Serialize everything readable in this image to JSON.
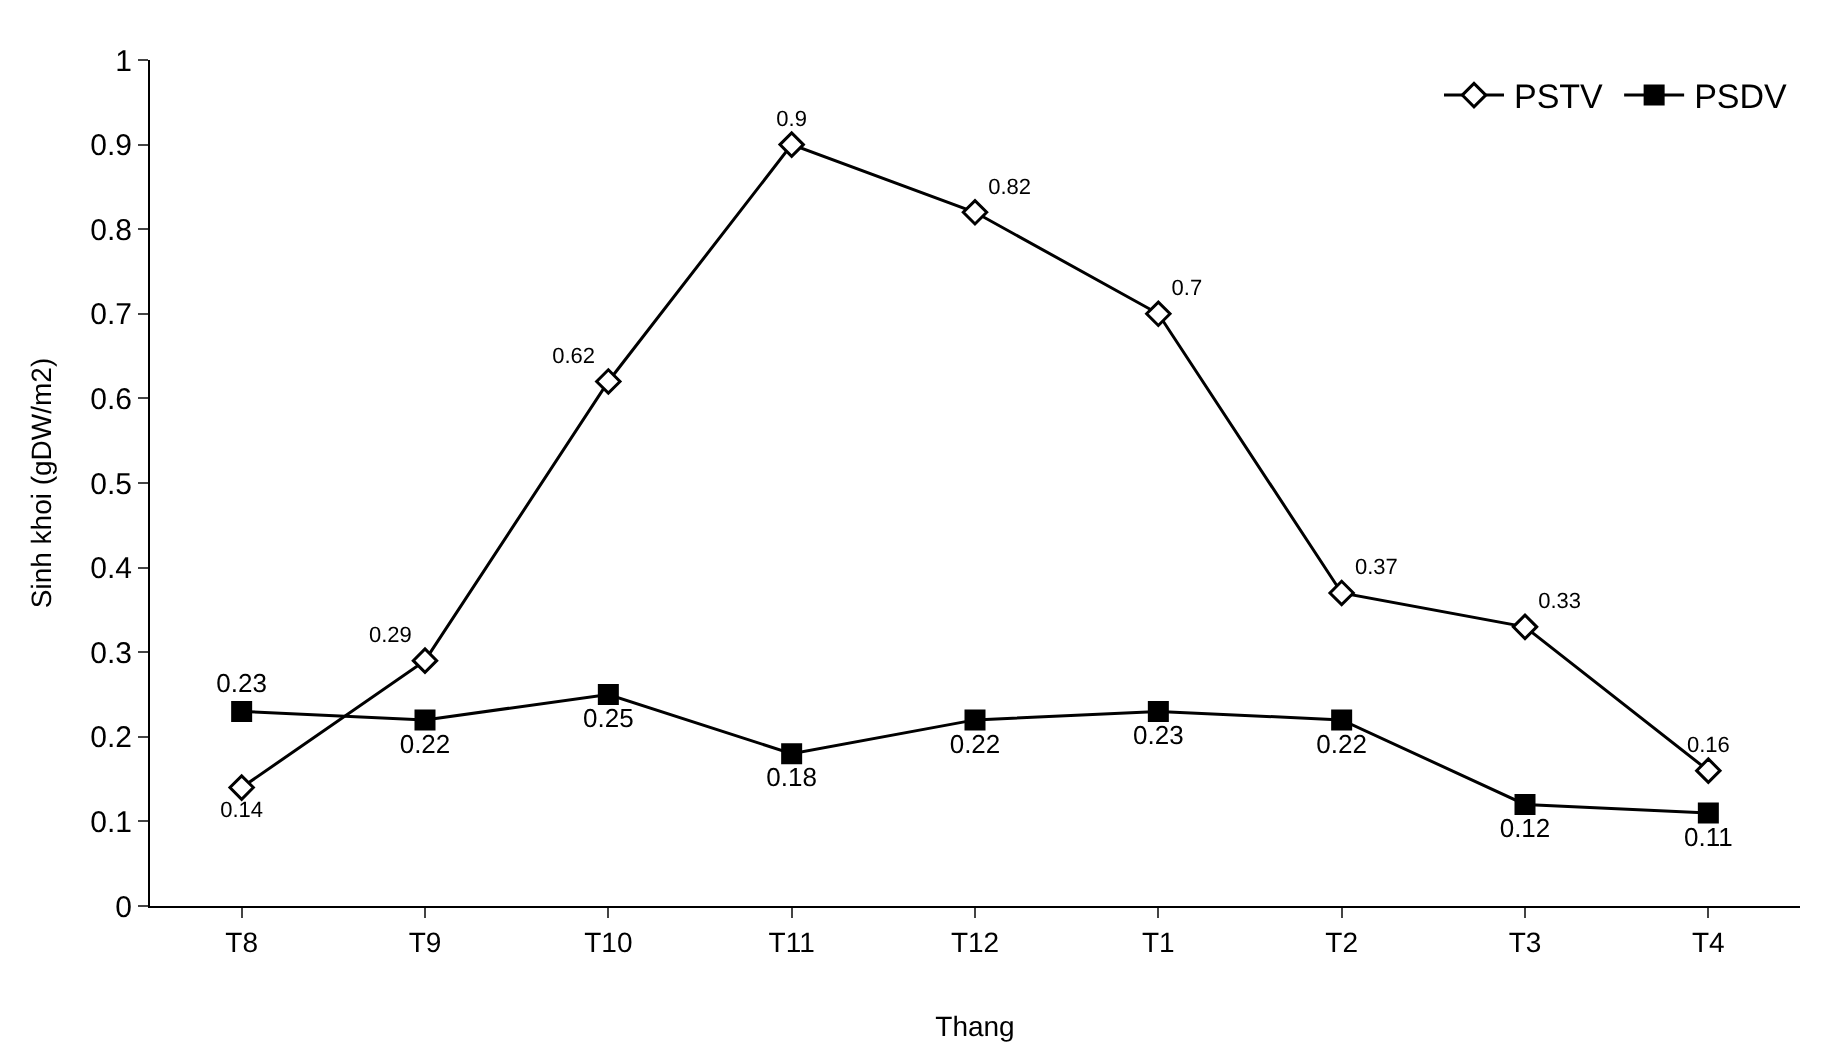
{
  "chart_data": {
    "type": "line",
    "ylabel": "Sinh khoi (gDW/m2)",
    "xlabel": "Thang",
    "categories": [
      "T8",
      "T9",
      "T10",
      "T11",
      "T12",
      "T1",
      "T2",
      "T3",
      "T4"
    ],
    "series": [
      {
        "name": "PSTV",
        "color": "#000000",
        "marker": "diamond",
        "values": [
          0.14,
          0.29,
          0.62,
          0.9,
          0.82,
          0.7,
          0.37,
          0.33,
          0.16
        ]
      },
      {
        "name": "PSDV",
        "color": "#000000",
        "marker": "square",
        "values": [
          0.23,
          0.22,
          0.25,
          0.18,
          0.22,
          0.23,
          0.22,
          0.12,
          0.11
        ]
      }
    ],
    "ylim": [
      0,
      1
    ],
    "yticks": [
      0,
      0.1,
      0.2,
      0.3,
      0.4,
      0.5,
      0.6,
      0.7,
      0.8,
      0.9,
      1
    ],
    "grid": false,
    "legend": "top right",
    "data_labels": true,
    "line_style": "solid"
  }
}
